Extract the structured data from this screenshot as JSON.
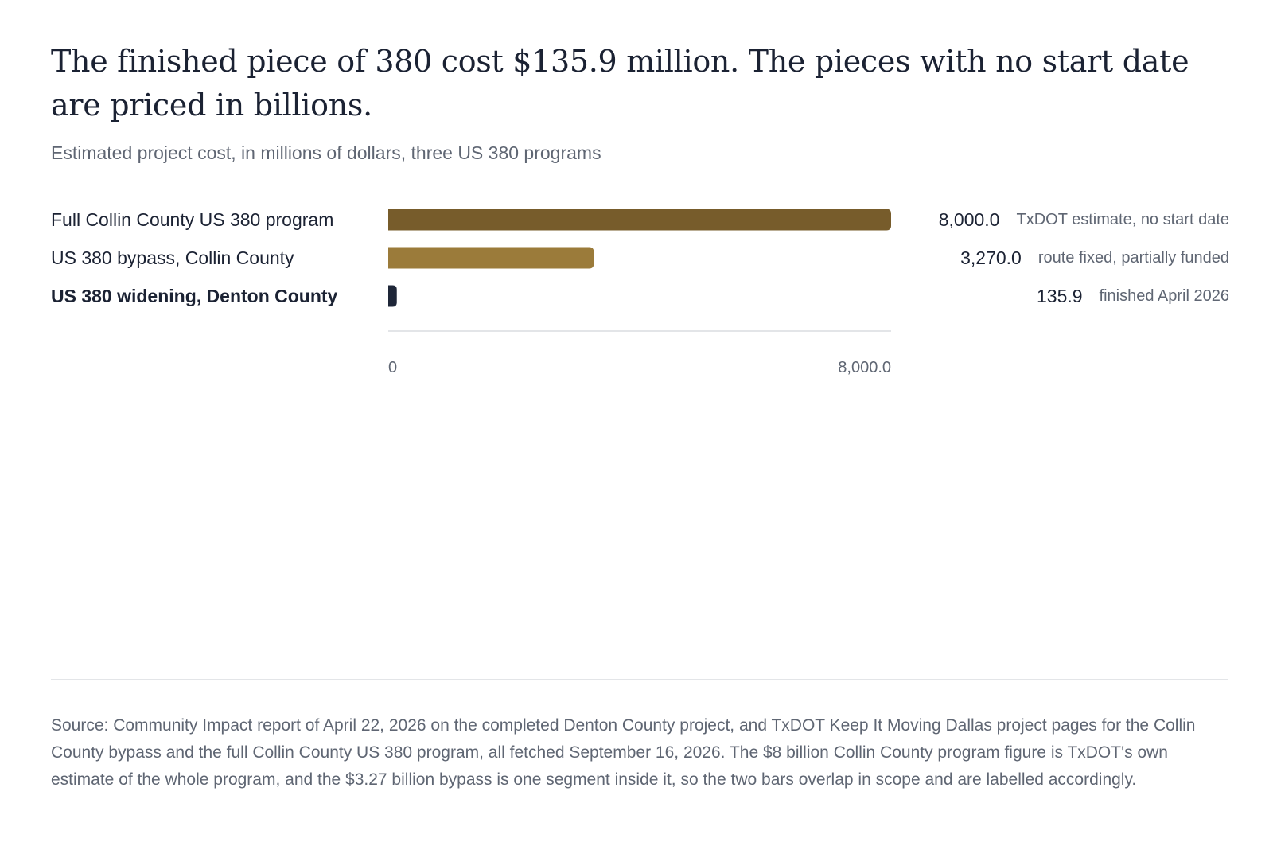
{
  "title": "The finished piece of 380 cost $135.9 million. The pieces with no start date are priced in billions.",
  "subtitle": "Estimated project cost, in millions of dollars, three US 380 programs",
  "source": "Source: Community Impact report of April 22, 2026 on the completed Denton County project, and TxDOT Keep It Moving Dallas project pages for the Collin County bypass and the full Collin County US 380 program, all fetched September 16, 2026. The $8 billion Collin County program figure is TxDOT's own estimate of the whole program, and the $3.27 billion bypass is one segment inside it, so the two bars overlap in scope and are labelled accordingly.",
  "chart_data": {
    "type": "bar",
    "orientation": "horizontal",
    "title": "The finished piece of 380 cost $135.9 million. The pieces with no start date are priced in billions.",
    "subtitle": "Estimated project cost, in millions of dollars, three US 380 programs",
    "categories": [
      "Full Collin County US 380 program",
      "US 380 bypass, Collin County",
      "US 380 widening, Denton County"
    ],
    "values": [
      8000.0,
      3270.0,
      135.9
    ],
    "value_labels": [
      "8,000.0",
      "3,270.0",
      "135.9"
    ],
    "notes": [
      "TxDOT estimate, no start date",
      "route fixed, partially funded",
      "finished April 2026"
    ],
    "highlight": [
      false,
      false,
      true
    ],
    "colors": [
      "#775c2b",
      "#9b7b3a",
      "#1e2638"
    ],
    "xlim": [
      0,
      8000.0
    ],
    "x_ticks": [
      0,
      8000.0
    ],
    "x_tick_labels": [
      "0",
      "8,000.0"
    ],
    "grid": false,
    "legend": "none"
  }
}
